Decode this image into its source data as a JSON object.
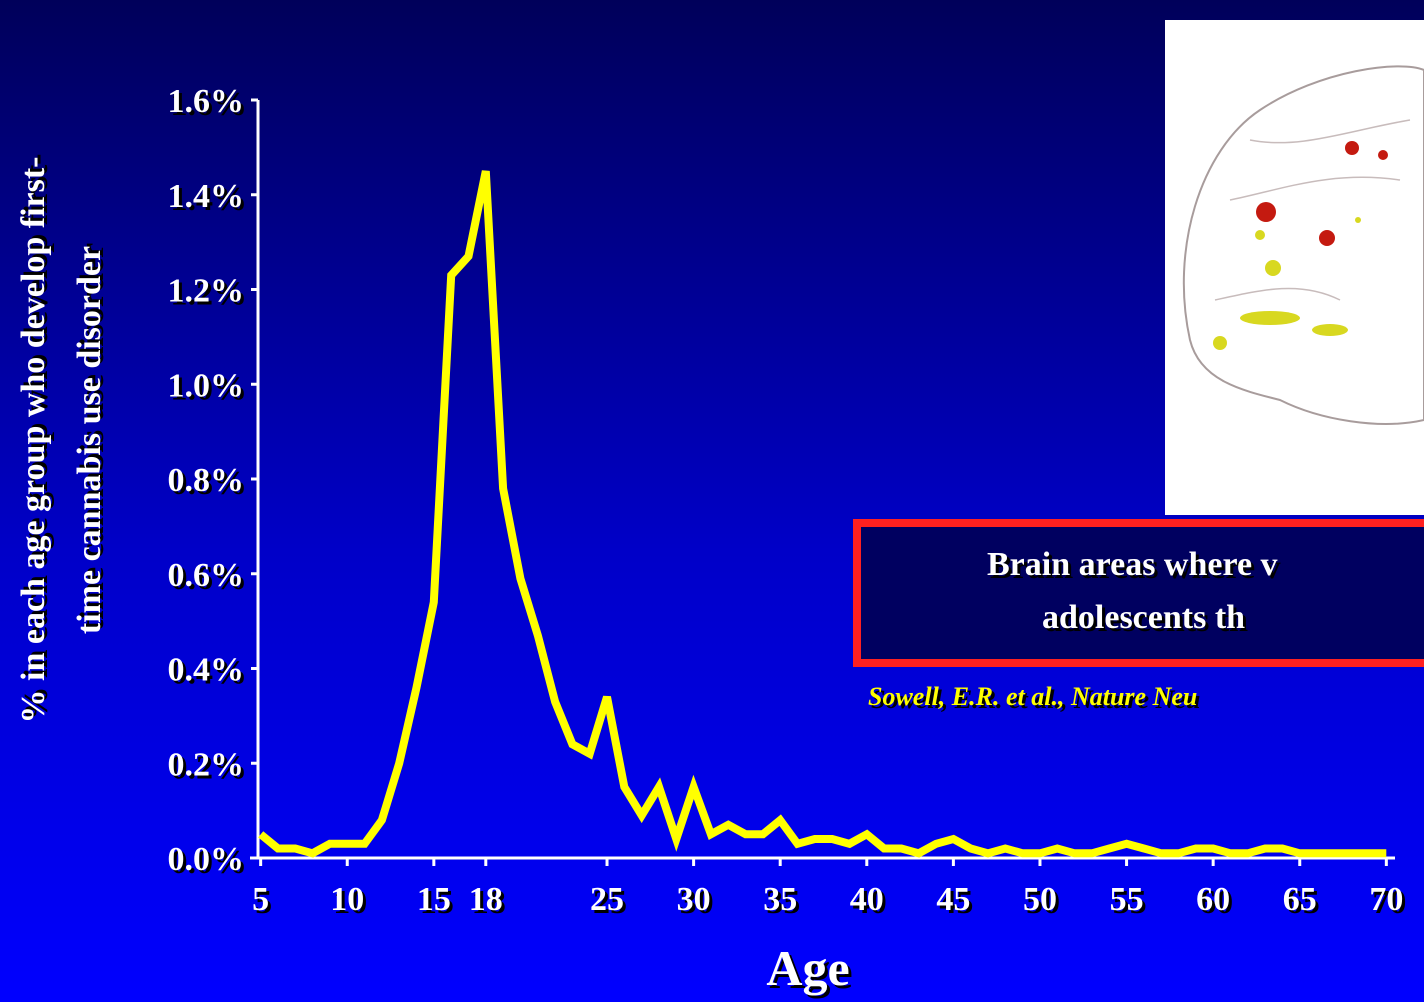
{
  "chart_data": {
    "type": "line",
    "y_label_lines": [
      "% in each age group who develop first-",
      "time cannabis use disorder"
    ],
    "x_label": "Age",
    "x": [
      5,
      6,
      7,
      8,
      9,
      10,
      11,
      12,
      13,
      14,
      15,
      16,
      17,
      18,
      19,
      20,
      21,
      22,
      23,
      24,
      25,
      26,
      27,
      28,
      29,
      30,
      31,
      32,
      33,
      34,
      35,
      36,
      37,
      38,
      39,
      40,
      41,
      42,
      43,
      44,
      45,
      46,
      47,
      48,
      49,
      50,
      51,
      52,
      53,
      54,
      55,
      56,
      57,
      58,
      59,
      60,
      61,
      62,
      63,
      64,
      65,
      66,
      67,
      68,
      69,
      70
    ],
    "values": [
      0.05,
      0.02,
      0.02,
      0.01,
      0.03,
      0.03,
      0.03,
      0.08,
      0.2,
      0.36,
      0.54,
      1.23,
      1.27,
      1.45,
      0.78,
      0.59,
      0.47,
      0.33,
      0.24,
      0.22,
      0.34,
      0.15,
      0.09,
      0.15,
      0.04,
      0.15,
      0.05,
      0.07,
      0.05,
      0.05,
      0.08,
      0.03,
      0.04,
      0.04,
      0.03,
      0.05,
      0.02,
      0.02,
      0.01,
      0.03,
      0.04,
      0.02,
      0.01,
      0.02,
      0.01,
      0.01,
      0.02,
      0.01,
      0.01,
      0.02,
      0.03,
      0.02,
      0.01,
      0.01,
      0.02,
      0.02,
      0.01,
      0.01,
      0.02,
      0.02,
      0.01,
      0.01,
      0.01,
      0.01,
      0.01,
      0.01
    ],
    "color": "#ffff00",
    "xlim": [
      4.5,
      70.5
    ],
    "xticks": [
      5,
      10,
      15,
      18,
      25,
      30,
      35,
      40,
      45,
      50,
      55,
      60,
      65,
      70
    ],
    "ylim": [
      0,
      1.6
    ],
    "yticks": [
      {
        "value": 0,
        "label": "0.0%"
      },
      {
        "value": 0.2,
        "label": "0.2%"
      },
      {
        "value": 0.4,
        "label": "0.4%"
      },
      {
        "value": 0.6,
        "label": "0.6%"
      },
      {
        "value": 0.8,
        "label": "0.8%"
      },
      {
        "value": 1.0,
        "label": "1.0%"
      },
      {
        "value": 1.2,
        "label": "1.2%"
      },
      {
        "value": 1.4,
        "label": "1.4%"
      },
      {
        "value": 1.6,
        "label": "1.6%"
      }
    ],
    "caption_lines": [
      "Brain areas where v",
      "adolescents th"
    ],
    "citation": "Sowell, E.R. et al., Nature Neu"
  }
}
